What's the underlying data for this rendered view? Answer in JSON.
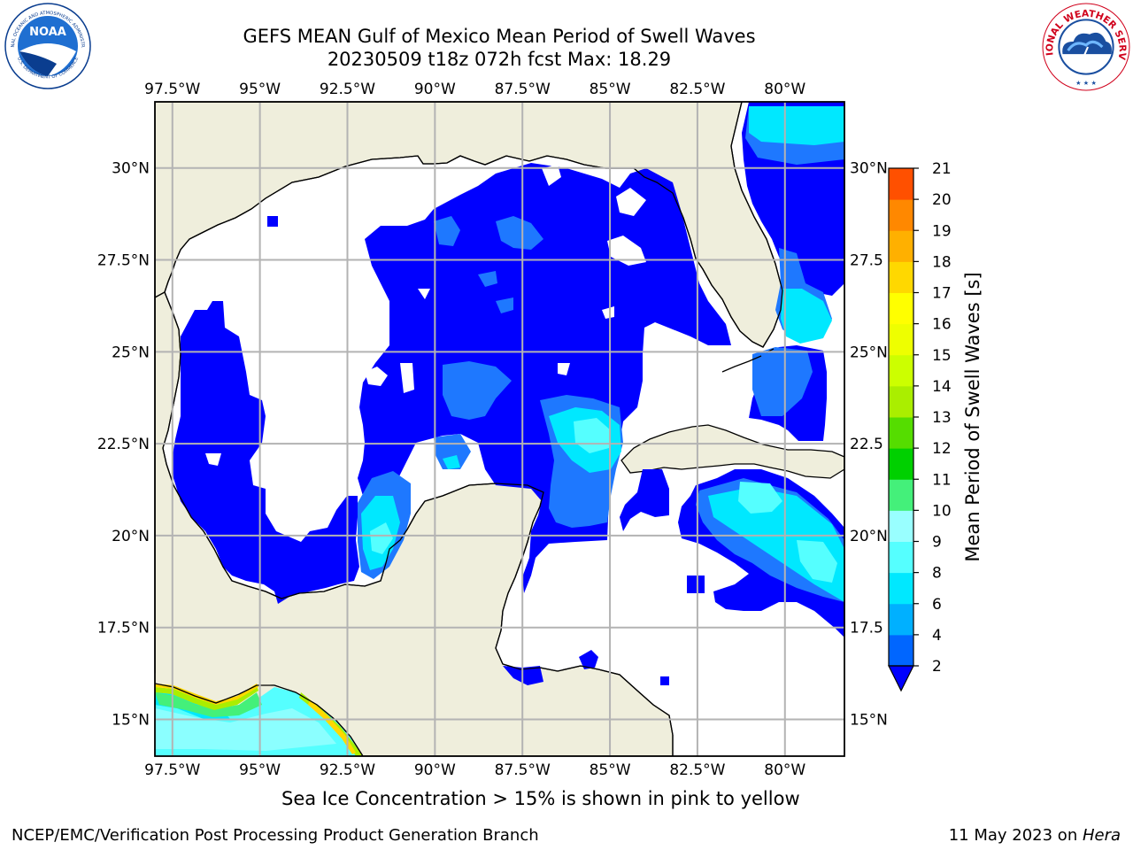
{
  "title": {
    "line1": "GEFS MEAN Gulf of Mexico Mean Period of Swell Waves",
    "line2": "20230509 t18z 072h fcst   Max: 18.29"
  },
  "logos": {
    "left": "NOAA",
    "left_ring_top": "NATIONAL OCEANIC AND ATMOSPHERIC ADMINISTRATION",
    "left_ring_bottom": "U.S. DEPARTMENT OF COMMERCE",
    "right_ring": "NATIONAL WEATHER SERVICE"
  },
  "map": {
    "lon_labels": [
      "97.5°W",
      "95°W",
      "92.5°W",
      "90°W",
      "87.5°W",
      "85°W",
      "82.5°W",
      "80°W"
    ],
    "lat_labels_left": [
      "30°N",
      "27.5°N",
      "25°N",
      "22.5°N",
      "20°N",
      "17.5°N",
      "15°N"
    ],
    "lat_labels_right": [
      "30°N",
      "27.5",
      "25°N",
      "22.5",
      "20°N",
      "17.5",
      "15°N"
    ],
    "lon_values": [
      -97.5,
      -95,
      -92.5,
      -90,
      -87.5,
      -85,
      -82.5,
      -80
    ],
    "lat_values": [
      30,
      27.5,
      25,
      22.5,
      20,
      17.5,
      15
    ],
    "extent": {
      "lon_min": -98,
      "lon_max": -78.3,
      "lat_min": 14,
      "lat_max": 31.8
    },
    "colors": {
      "land": "#efeedc",
      "ocean_nodata": "#ffffff",
      "grid": "#b3b3b3"
    }
  },
  "colorbar": {
    "label": "Mean Period of Swell Waves [s]",
    "ticks": [
      "2",
      "4",
      "6",
      "8",
      "9",
      "10",
      "11",
      "12",
      "13",
      "14",
      "15",
      "16",
      "17",
      "18",
      "19",
      "20",
      "21"
    ],
    "colors": [
      "#0066ff",
      "#00b0ff",
      "#00e8ff",
      "#55ffff",
      "#99ffff",
      "#44f07a",
      "#00d000",
      "#55dd00",
      "#aaee00",
      "#ccff00",
      "#eeff00",
      "#ffff00",
      "#ffd800",
      "#ffb000",
      "#ff8800",
      "#ff5000",
      "#ff2000",
      "#ff0000"
    ],
    "extend_color": "#0000ff"
  },
  "caption": "Sea Ice Concentration > 15% is shown in pink to yellow",
  "footer": {
    "left": "NCEP/EMC/Verification Post Processing Product Generation Branch",
    "right_prefix": "11 May 2023 on ",
    "right_host": "Hera"
  }
}
